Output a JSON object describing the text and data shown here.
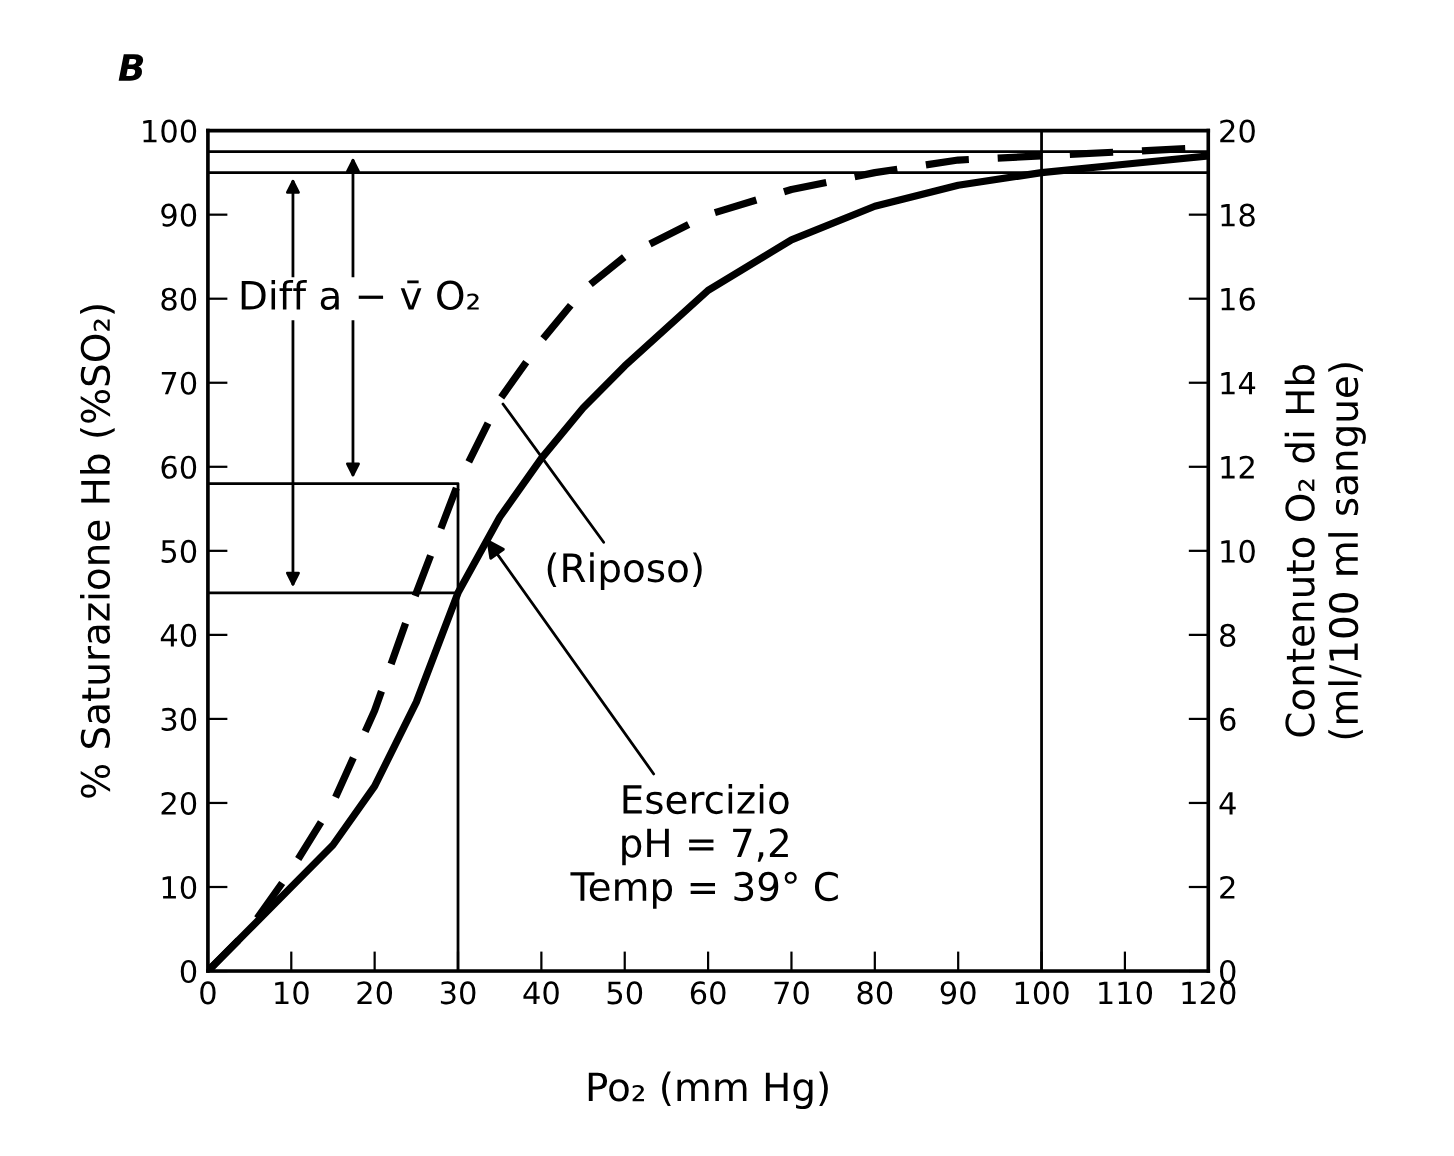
{
  "chart_data": {
    "type": "line",
    "title": "B",
    "xlabel": "Po₂ (mm Hg)",
    "ylabel": "% Saturazione Hb (%SO₂)",
    "y2label": "Contenuto O₂ di Hb\n(ml/100 ml sangue)",
    "xlim": [
      0,
      120
    ],
    "xticks": [
      0,
      10,
      20,
      30,
      40,
      50,
      60,
      70,
      80,
      90,
      100,
      110,
      120
    ],
    "ylim": [
      0,
      100
    ],
    "yticks": [
      0,
      10,
      20,
      30,
      40,
      50,
      60,
      70,
      80,
      90,
      100
    ],
    "y2lim": [
      0,
      20
    ],
    "y2ticks": [
      0,
      2,
      4,
      6,
      8,
      10,
      12,
      14,
      16,
      18,
      20
    ],
    "grid": false,
    "marker": "none",
    "series": [
      {
        "color": "#000000",
        "line_style": "solid",
        "x": [
          0,
          5,
          10,
          15,
          20,
          25,
          30,
          35,
          40,
          45,
          50,
          60,
          70,
          80,
          90,
          100,
          110,
          120
        ],
        "values": [
          0,
          5,
          10,
          15,
          22,
          32,
          45,
          54,
          61,
          67,
          72,
          81,
          87,
          91,
          93.5,
          95,
          96,
          97
        ]
      },
      {
        "color": "#000000",
        "line_style": "dashed",
        "x": [
          0,
          5,
          10,
          15,
          20,
          25,
          30,
          35,
          40,
          45,
          50,
          60,
          70,
          80,
          90,
          100,
          110,
          120
        ],
        "values": [
          0,
          5,
          12,
          20,
          31,
          45,
          58,
          68,
          75,
          81,
          85,
          90,
          93,
          95,
          96.5,
          97,
          97.5,
          98
        ]
      },
      {
        "color": "#000000",
        "line_style": "solid",
        "x": [
          0,
          30,
          30
        ],
        "values": [
          58,
          58,
          0
        ]
      },
      {
        "color": "#000000",
        "line_style": "solid",
        "x": [
          0,
          30
        ],
        "values": [
          45,
          45
        ]
      }
    ],
    "ref_lines": [
      {
        "axis": "x",
        "value": 100,
        "color": "#000000"
      },
      {
        "axis": "y",
        "value": 97.5,
        "color": "#000000"
      },
      {
        "axis": "y",
        "value": 95,
        "color": "#000000"
      }
    ],
    "annotations": [
      "Diff a − v̄ O₂",
      {
        "text": "(Riposo)",
        "x": 35,
        "y": 68
      },
      {
        "text": "Esercizio\npH = 7,2\nTemp = 39° C",
        "x": 33,
        "y": 52
      }
    ]
  }
}
